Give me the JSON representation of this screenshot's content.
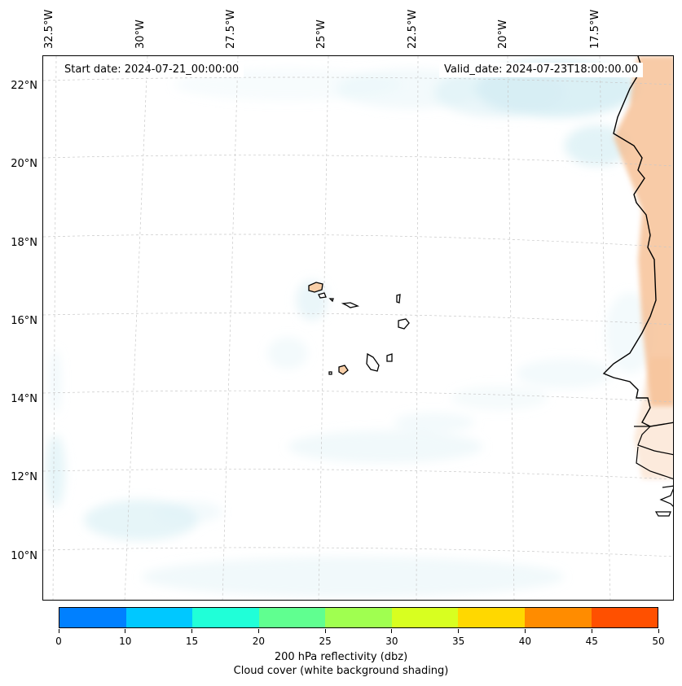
{
  "header": {
    "start_date": "Start date: 2024-07-21_00:00:00",
    "valid_date": "Valid_date: 2024-07-23T18:00:00.00"
  },
  "longitude_labels": [
    "32.5°W",
    "30°W",
    "27.5°W",
    "25°W",
    "22.5°W",
    "20°W",
    "17.5°W"
  ],
  "latitude_labels": [
    "22°N",
    "20°N",
    "18°N",
    "16°N",
    "14°N",
    "12°N",
    "10°N"
  ],
  "colorbar": {
    "colors": [
      "#0080ff",
      "#00c8ff",
      "#20ffd8",
      "#60ff90",
      "#a0ff50",
      "#d8ff20",
      "#ffd800",
      "#ff8c00",
      "#ff5000"
    ],
    "ticks": [
      "0",
      "10",
      "15",
      "20",
      "25",
      "30",
      "35",
      "40",
      "45",
      "50"
    ],
    "title_line1": "200 hPa reflectivity (dbz)",
    "title_line2": "Cloud cover (white background shading)"
  },
  "map_colors": {
    "cloud_shade": "#d6eef4",
    "land_warm": "#f5b98a",
    "island_fill": "#f8cfa8",
    "coastline": "#000000",
    "gridline": "#c8c8c8"
  }
}
